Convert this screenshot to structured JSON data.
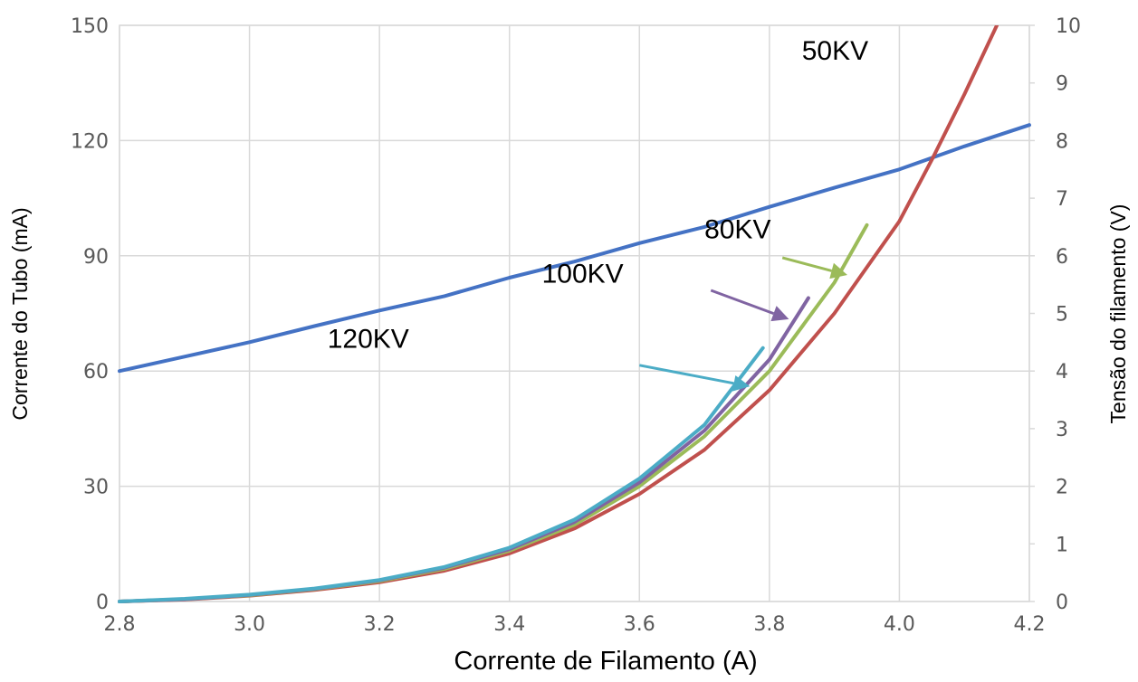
{
  "chart_data": {
    "type": "line",
    "xlabel": "Corrente de Filamento (A)",
    "ylabel": "Corrente do Tubo (mA)",
    "y2label": "Tensão do filamento (V)",
    "xlim": [
      2.8,
      4.2
    ],
    "ylim": [
      0,
      150
    ],
    "y2lim": [
      0,
      10
    ],
    "x_ticks": [
      "2.8",
      "3.0",
      "3.2",
      "3.4",
      "3.6",
      "3.8",
      "4.0",
      "4.2"
    ],
    "y_ticks": [
      "0",
      "30",
      "60",
      "90",
      "120",
      "150"
    ],
    "y2_ticks": [
      "0",
      "1",
      "2",
      "3",
      "4",
      "5",
      "6",
      "7",
      "8",
      "9",
      "10"
    ],
    "grid": true,
    "colors": {
      "voltage": "#4472c4",
      "kv50": "#c0504d",
      "kv80": "#9bbb59",
      "kv100": "#8064a2",
      "kv120": "#4bacc6",
      "grid": "#d9d9d9"
    },
    "series": [
      {
        "key": "voltage",
        "axis": "right",
        "x": [
          2.8,
          2.9,
          3.0,
          3.1,
          3.2,
          3.3,
          3.4,
          3.5,
          3.6,
          3.7,
          3.8,
          3.9,
          4.0,
          4.1,
          4.2
        ],
        "values": [
          4.0,
          4.25,
          4.5,
          4.78,
          5.05,
          5.3,
          5.62,
          5.9,
          6.22,
          6.5,
          6.85,
          7.18,
          7.5,
          7.9,
          8.27
        ]
      },
      {
        "key": "kv50",
        "axis": "left",
        "x": [
          2.8,
          2.9,
          3.0,
          3.1,
          3.2,
          3.3,
          3.4,
          3.5,
          3.6,
          3.7,
          3.8,
          3.9,
          4.0,
          4.05,
          4.1,
          4.15
        ],
        "values": [
          0,
          0.5,
          1.5,
          3,
          5,
          8,
          12.5,
          19,
          28,
          39.5,
          55,
          75,
          99,
          115,
          132,
          150
        ]
      },
      {
        "key": "kv80",
        "axis": "left",
        "x": [
          2.8,
          2.9,
          3.0,
          3.1,
          3.2,
          3.3,
          3.4,
          3.5,
          3.6,
          3.7,
          3.8,
          3.9,
          3.95
        ],
        "values": [
          0,
          0.6,
          1.6,
          3.2,
          5.3,
          8.5,
          13.2,
          20,
          30,
          43,
          60,
          83,
          98
        ]
      },
      {
        "key": "kv100",
        "axis": "left",
        "x": [
          2.8,
          2.9,
          3.0,
          3.1,
          3.2,
          3.3,
          3.4,
          3.5,
          3.6,
          3.7,
          3.8,
          3.86
        ],
        "values": [
          0,
          0.6,
          1.7,
          3.3,
          5.5,
          8.8,
          13.6,
          20.7,
          31,
          44.5,
          63,
          79
        ]
      },
      {
        "key": "kv120",
        "axis": "left",
        "x": [
          2.8,
          2.9,
          3.0,
          3.1,
          3.2,
          3.3,
          3.4,
          3.5,
          3.6,
          3.7,
          3.79
        ],
        "values": [
          0,
          0.7,
          1.8,
          3.4,
          5.6,
          9,
          14,
          21.3,
          32,
          46,
          66
        ]
      }
    ],
    "annotations": [
      {
        "text": "50KV",
        "x": 3.85,
        "y": 141
      },
      {
        "text": "80KV",
        "x": 3.7,
        "y": 94.5
      },
      {
        "text": "100KV",
        "x": 3.45,
        "y": 83
      },
      {
        "text": "120KV",
        "x": 3.12,
        "y": 66
      }
    ],
    "arrows": [
      {
        "series": "kv80",
        "from": [
          3.82,
          89.5
        ],
        "to": [
          3.92,
          85
        ]
      },
      {
        "series": "kv100",
        "from": [
          3.71,
          81
        ],
        "to": [
          3.83,
          73.5
        ]
      },
      {
        "series": "kv120",
        "from": [
          3.6,
          61.5
        ],
        "to": [
          3.77,
          56
        ]
      }
    ]
  }
}
